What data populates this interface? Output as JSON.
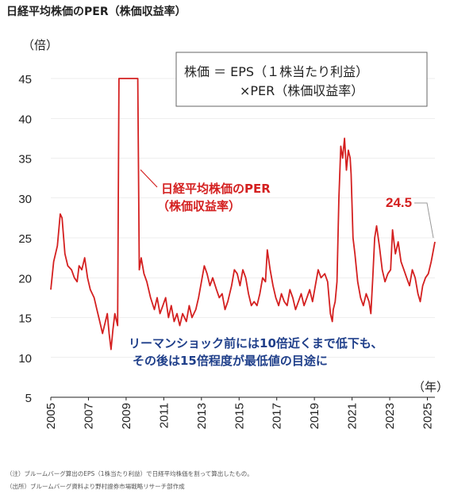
{
  "page_title": "日経平均株価のPER（株価収益率）",
  "notes": [
    "（注）ブルームバーグ算出のEPS（1株当たり利益）で日経平均株価を割って算出したもの。",
    "（出所）ブルームバーグ資料より野村證券市場戦略リサーチ部作成"
  ],
  "colors": {
    "series": "#d42020",
    "annotation": "#1f3f8a",
    "axis": "#222222",
    "grid": "#dddddd",
    "leader": "#999999"
  },
  "chart_data": {
    "type": "line",
    "ylabel": "（倍）",
    "xlabel": "（年）",
    "ylim": [
      5,
      45
    ],
    "yticks": [
      5,
      10,
      15,
      20,
      25,
      30,
      35,
      40,
      45
    ],
    "xlim": [
      2005,
      2025.4
    ],
    "xticks": [
      2005,
      2007,
      2009,
      2011,
      2013,
      2015,
      2017,
      2019,
      2021,
      2023,
      2025
    ],
    "grid": true,
    "formula_box": [
      "株価 ＝ EPS（１株当たり利益）",
      "×PER（株価収益率）"
    ],
    "series": [
      {
        "name": "日経平均株価のPER（株価収益率）",
        "points": [
          [
            2005.0,
            18.5
          ],
          [
            2005.15,
            22.0
          ],
          [
            2005.35,
            24.0
          ],
          [
            2005.5,
            28.0
          ],
          [
            2005.6,
            27.5
          ],
          [
            2005.75,
            23.0
          ],
          [
            2005.9,
            21.5
          ],
          [
            2006.1,
            21.0
          ],
          [
            2006.25,
            20.0
          ],
          [
            2006.4,
            19.5
          ],
          [
            2006.5,
            21.5
          ],
          [
            2006.65,
            21.0
          ],
          [
            2006.8,
            22.5
          ],
          [
            2006.95,
            20.0
          ],
          [
            2007.1,
            18.5
          ],
          [
            2007.3,
            17.5
          ],
          [
            2007.45,
            16.0
          ],
          [
            2007.6,
            14.5
          ],
          [
            2007.75,
            13.0
          ],
          [
            2007.85,
            14.0
          ],
          [
            2008.0,
            15.5
          ],
          [
            2008.1,
            13.0
          ],
          [
            2008.2,
            11.0
          ],
          [
            2008.3,
            13.5
          ],
          [
            2008.4,
            15.5
          ],
          [
            2008.55,
            14.0
          ],
          [
            2008.62,
            45.0
          ],
          [
            2008.75,
            45.0
          ],
          [
            2008.95,
            45.0
          ],
          [
            2009.15,
            45.0
          ],
          [
            2009.35,
            45.0
          ],
          [
            2009.55,
            45.0
          ],
          [
            2009.62,
            45.0
          ],
          [
            2009.7,
            21.0
          ],
          [
            2009.8,
            22.5
          ],
          [
            2009.95,
            20.5
          ],
          [
            2010.1,
            19.5
          ],
          [
            2010.3,
            17.5
          ],
          [
            2010.5,
            16.0
          ],
          [
            2010.65,
            17.5
          ],
          [
            2010.8,
            15.5
          ],
          [
            2010.95,
            16.5
          ],
          [
            2011.1,
            17.5
          ],
          [
            2011.25,
            15.0
          ],
          [
            2011.4,
            16.5
          ],
          [
            2011.55,
            14.5
          ],
          [
            2011.7,
            15.5
          ],
          [
            2011.85,
            14.0
          ],
          [
            2012.0,
            15.5
          ],
          [
            2012.2,
            14.5
          ],
          [
            2012.35,
            16.5
          ],
          [
            2012.5,
            15.0
          ],
          [
            2012.7,
            16.0
          ],
          [
            2012.85,
            17.5
          ],
          [
            2013.0,
            19.5
          ],
          [
            2013.15,
            21.5
          ],
          [
            2013.3,
            20.5
          ],
          [
            2013.45,
            19.0
          ],
          [
            2013.6,
            20.0
          ],
          [
            2013.8,
            18.5
          ],
          [
            2013.95,
            17.5
          ],
          [
            2014.1,
            18.0
          ],
          [
            2014.25,
            16.0
          ],
          [
            2014.4,
            17.0
          ],
          [
            2014.6,
            19.0
          ],
          [
            2014.75,
            21.0
          ],
          [
            2014.9,
            20.5
          ],
          [
            2015.05,
            19.0
          ],
          [
            2015.2,
            21.0
          ],
          [
            2015.35,
            20.0
          ],
          [
            2015.5,
            18.0
          ],
          [
            2015.65,
            16.5
          ],
          [
            2015.8,
            17.0
          ],
          [
            2015.95,
            16.5
          ],
          [
            2016.1,
            18.0
          ],
          [
            2016.25,
            20.0
          ],
          [
            2016.4,
            19.5
          ],
          [
            2016.5,
            23.5
          ],
          [
            2016.65,
            21.0
          ],
          [
            2016.8,
            19.0
          ],
          [
            2016.95,
            17.5
          ],
          [
            2017.1,
            16.5
          ],
          [
            2017.25,
            18.0
          ],
          [
            2017.4,
            17.0
          ],
          [
            2017.55,
            16.5
          ],
          [
            2017.7,
            18.5
          ],
          [
            2017.85,
            17.5
          ],
          [
            2018.0,
            16.0
          ],
          [
            2018.15,
            17.0
          ],
          [
            2018.3,
            18.0
          ],
          [
            2018.45,
            16.5
          ],
          [
            2018.6,
            17.5
          ],
          [
            2018.75,
            18.5
          ],
          [
            2018.9,
            17.0
          ],
          [
            2019.05,
            19.0
          ],
          [
            2019.2,
            21.0
          ],
          [
            2019.35,
            20.0
          ],
          [
            2019.55,
            20.5
          ],
          [
            2019.7,
            19.5
          ],
          [
            2019.85,
            15.5
          ],
          [
            2019.95,
            14.5
          ],
          [
            2020.0,
            16.0
          ],
          [
            2020.1,
            17.0
          ],
          [
            2020.2,
            19.5
          ],
          [
            2020.3,
            30.0
          ],
          [
            2020.4,
            36.5
          ],
          [
            2020.5,
            35.0
          ],
          [
            2020.6,
            37.5
          ],
          [
            2020.7,
            33.5
          ],
          [
            2020.8,
            36.0
          ],
          [
            2020.9,
            35.0
          ],
          [
            2020.95,
            33.0
          ],
          [
            2021.05,
            25.0
          ],
          [
            2021.15,
            23.0
          ],
          [
            2021.3,
            19.5
          ],
          [
            2021.45,
            17.5
          ],
          [
            2021.6,
            16.5
          ],
          [
            2021.75,
            18.0
          ],
          [
            2021.9,
            17.0
          ],
          [
            2022.0,
            15.5
          ],
          [
            2022.1,
            20.0
          ],
          [
            2022.2,
            25.0
          ],
          [
            2022.3,
            26.5
          ],
          [
            2022.45,
            24.0
          ],
          [
            2022.6,
            21.0
          ],
          [
            2022.75,
            19.5
          ],
          [
            2022.9,
            20.5
          ],
          [
            2023.05,
            21.0
          ],
          [
            2023.15,
            26.0
          ],
          [
            2023.3,
            23.0
          ],
          [
            2023.45,
            24.5
          ],
          [
            2023.6,
            22.0
          ],
          [
            2023.75,
            21.0
          ],
          [
            2023.9,
            20.0
          ],
          [
            2024.05,
            19.0
          ],
          [
            2024.2,
            21.0
          ],
          [
            2024.35,
            20.0
          ],
          [
            2024.5,
            18.0
          ],
          [
            2024.62,
            17.0
          ],
          [
            2024.75,
            19.0
          ],
          [
            2024.9,
            20.0
          ],
          [
            2025.05,
            20.5
          ],
          [
            2025.2,
            22.0
          ],
          [
            2025.4,
            24.5
          ]
        ]
      }
    ],
    "annotations": {
      "series_label": [
        "日経平均株価のPER",
        "（株価収益率）"
      ],
      "latest_value": "24.5",
      "comment": [
        "リーマンショック前には10倍近くまで低下も、",
        "その後は15倍程度が最低値の目途に"
      ]
    }
  }
}
